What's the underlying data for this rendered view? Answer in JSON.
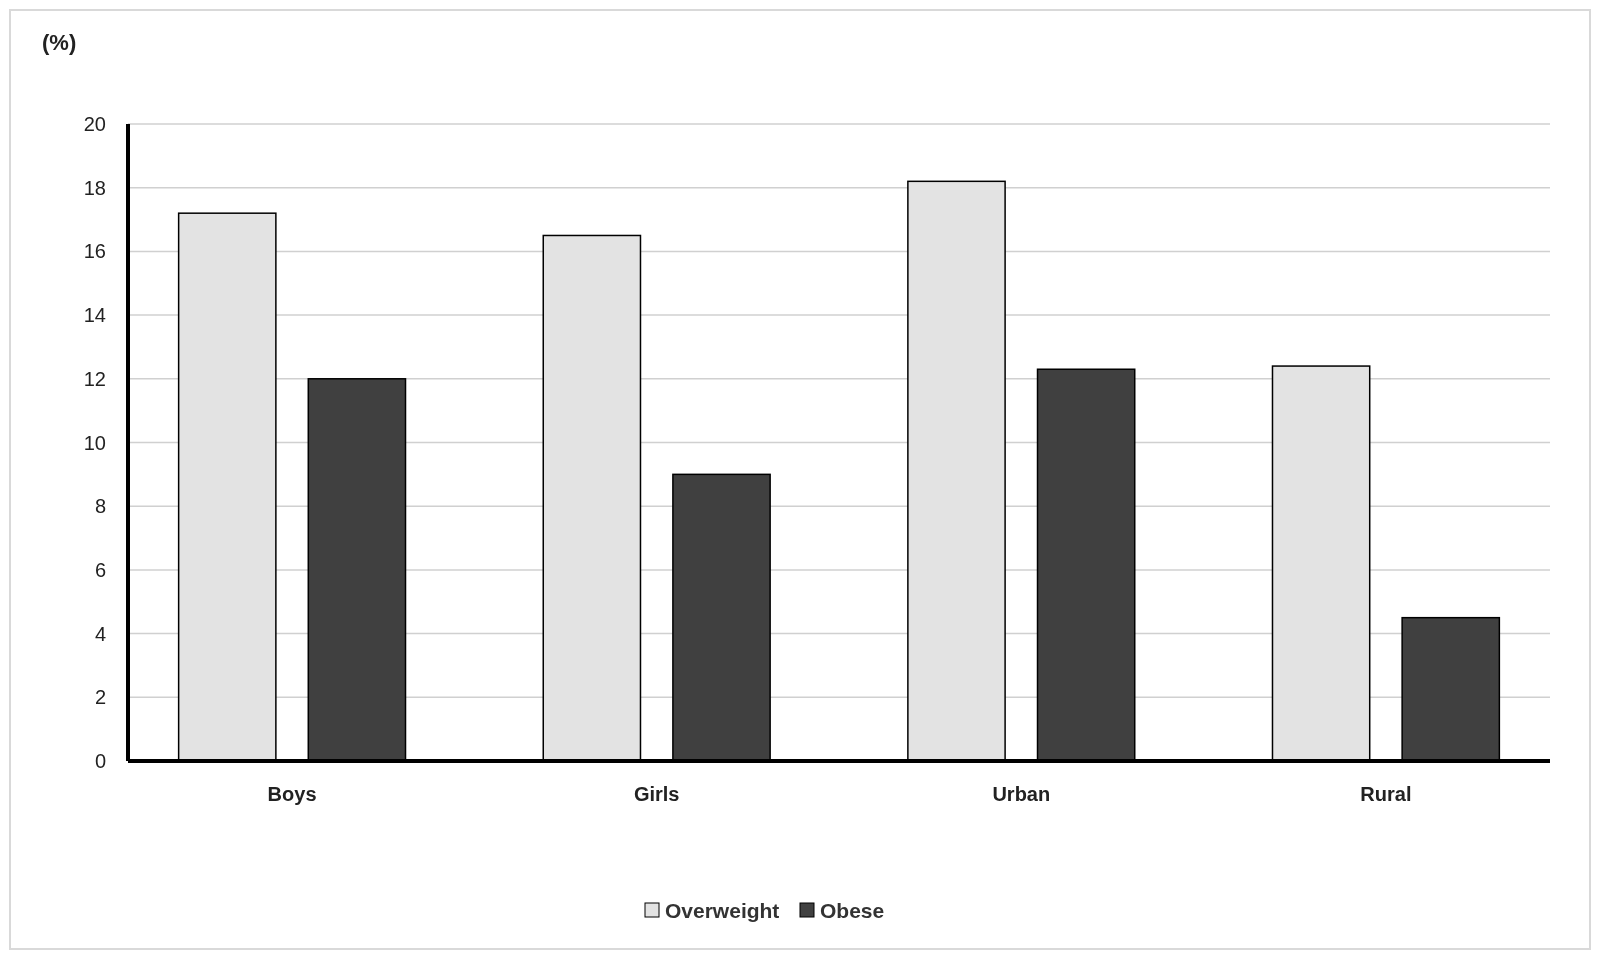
{
  "chart_data": {
    "type": "bar",
    "ylabel": "(%)",
    "categories": [
      "Boys",
      "Girls",
      "Urban",
      "Rural"
    ],
    "series": [
      {
        "name": "Overweight",
        "color": "#e3e3e3",
        "values": [
          17.2,
          16.5,
          18.2,
          12.4
        ]
      },
      {
        "name": "Obese",
        "color": "#404040",
        "values": [
          12.0,
          9.0,
          12.3,
          4.5
        ]
      }
    ],
    "ylim": [
      0,
      20
    ],
    "yticks": [
      0,
      2,
      4,
      6,
      8,
      10,
      12,
      14,
      16,
      18,
      20
    ],
    "grid": "y",
    "legend": "bottom"
  }
}
